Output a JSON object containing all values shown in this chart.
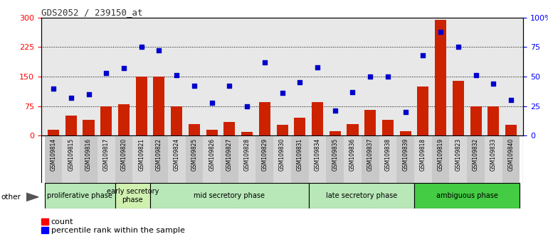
{
  "title": "GDS2052 / 239150_at",
  "samples": [
    "GSM109814",
    "GSM109815",
    "GSM109816",
    "GSM109817",
    "GSM109820",
    "GSM109821",
    "GSM109822",
    "GSM109824",
    "GSM109825",
    "GSM109826",
    "GSM109827",
    "GSM109828",
    "GSM109829",
    "GSM109830",
    "GSM109831",
    "GSM109834",
    "GSM109835",
    "GSM109836",
    "GSM109837",
    "GSM109838",
    "GSM109839",
    "GSM109818",
    "GSM109819",
    "GSM109823",
    "GSM109832",
    "GSM109833",
    "GSM109840"
  ],
  "counts": [
    15,
    50,
    40,
    75,
    80,
    150,
    150,
    75,
    30,
    15,
    35,
    10,
    85,
    28,
    45,
    85,
    12,
    30,
    65,
    40,
    12,
    125,
    295,
    140,
    75,
    75,
    28
  ],
  "percentiles": [
    40,
    32,
    35,
    53,
    57,
    75,
    72,
    51,
    42,
    28,
    42,
    25,
    62,
    36,
    45,
    58,
    21,
    37,
    50,
    50,
    20,
    68,
    88,
    75,
    51,
    44,
    30
  ],
  "phases": [
    {
      "label": "proliferative phase",
      "start": 0,
      "end": 4,
      "color": "#b8e8b8"
    },
    {
      "label": "early secretory\nphase",
      "start": 4,
      "end": 6,
      "color": "#d0f0b0"
    },
    {
      "label": "mid secretory phase",
      "start": 6,
      "end": 15,
      "color": "#b8e8b8"
    },
    {
      "label": "late secretory phase",
      "start": 15,
      "end": 21,
      "color": "#b8e8b8"
    },
    {
      "label": "ambiguous phase",
      "start": 21,
      "end": 27,
      "color": "#44cc44"
    }
  ],
  "ylim_left": [
    0,
    300
  ],
  "ylim_right": [
    0,
    100
  ],
  "yticks_left": [
    0,
    75,
    150,
    225,
    300
  ],
  "yticks_right": [
    0,
    25,
    50,
    75,
    100
  ],
  "bar_color": "#CC2200",
  "dot_color": "#0000CC",
  "bg_color": "#e8e8e8",
  "title_color": "#333333",
  "other_label": "other"
}
